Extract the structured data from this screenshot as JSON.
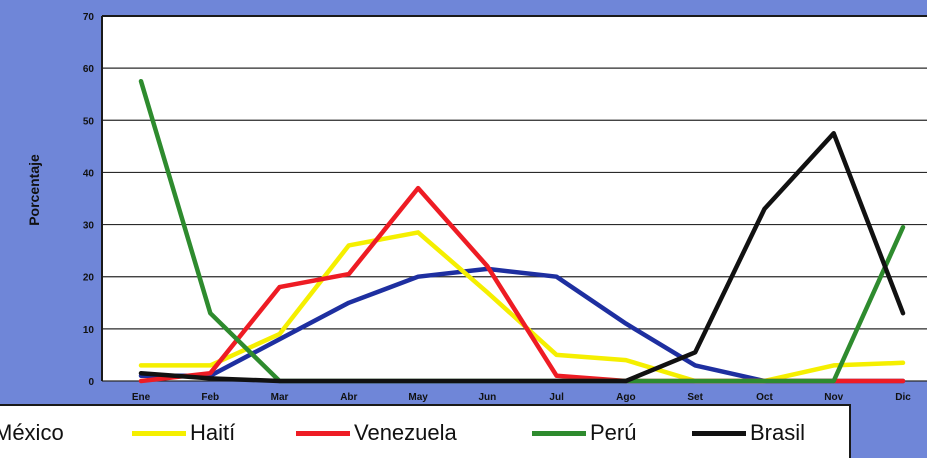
{
  "chart_data": {
    "type": "line",
    "xlabel": "",
    "ylabel": "Porcentaje",
    "ylim": [
      0,
      70
    ],
    "yticks": [
      "0",
      "10",
      "20",
      "30",
      "40",
      "50",
      "60",
      "70"
    ],
    "categories": [
      "Ene",
      "Feb",
      "Mar",
      "Abr",
      "May",
      "Jun",
      "Jul",
      "Ago",
      "Set",
      "Oct",
      "Nov",
      "Dic"
    ],
    "grid": true,
    "legend_position": "bottom",
    "series": [
      {
        "name": "México",
        "color": "#1e2fa0",
        "values": [
          1,
          1,
          8,
          15,
          20,
          21.5,
          20,
          11,
          3,
          0,
          0,
          0
        ]
      },
      {
        "name": "Haití",
        "color": "#f5ef00",
        "values": [
          3,
          3,
          9,
          26,
          28.5,
          17,
          5,
          4,
          0,
          0,
          3,
          3.5
        ]
      },
      {
        "name": "Venezuela",
        "color": "#ee1c24",
        "values": [
          0,
          1.5,
          18,
          20.5,
          37,
          22,
          1,
          0,
          0,
          0,
          0,
          0
        ]
      },
      {
        "name": "Perú",
        "color": "#2e8b2e",
        "values": [
          57.5,
          13,
          0,
          0,
          0,
          0,
          0,
          0,
          0,
          0,
          0,
          29.5
        ]
      },
      {
        "name": "Brasil",
        "color": "#111111",
        "values": [
          1.5,
          0.5,
          0,
          0,
          0,
          0,
          0,
          0,
          5.5,
          33,
          47.5,
          13
        ]
      }
    ]
  }
}
